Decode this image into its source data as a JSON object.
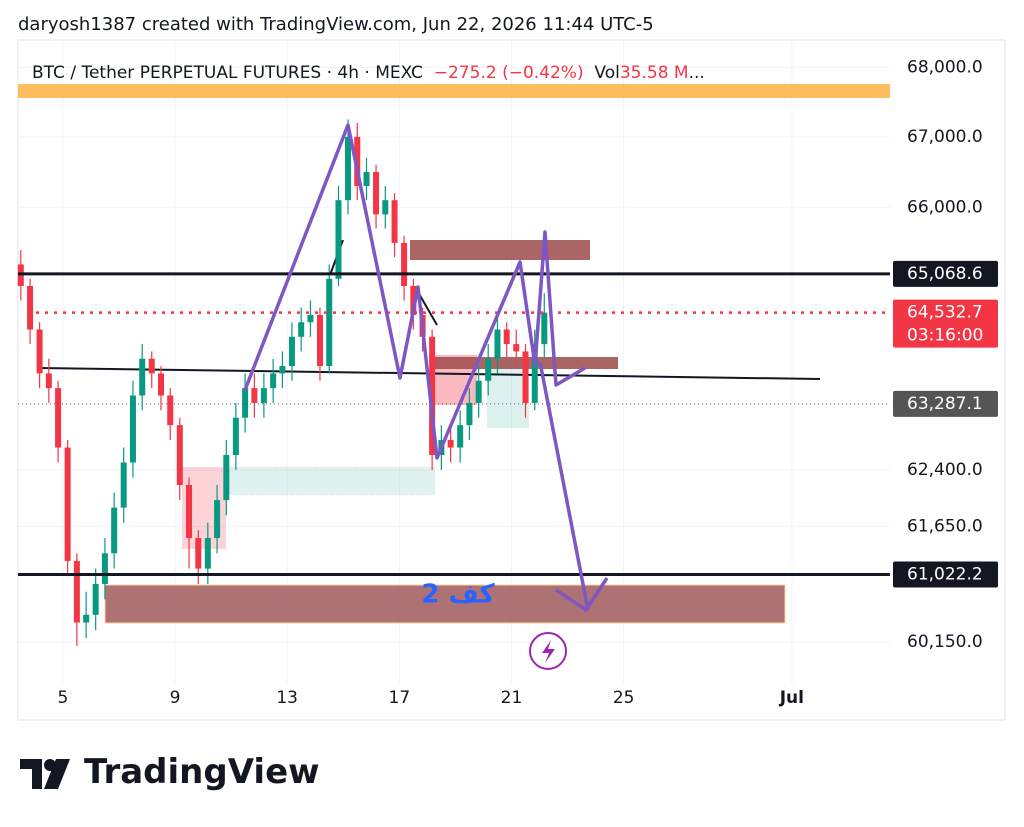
{
  "header": "daryosh1387 created with TradingView.com, Jun 22, 2026 11:44 UTC-5",
  "footer": "TradingView",
  "chart_data": {
    "type": "candlestick",
    "title": "BTC / Tether PERPETUAL FUTURES · 4h · MEXC",
    "change": "−275.2 (−0.42%)",
    "volume_label": "Vol",
    "volume": "35.58 M",
    "more": "...",
    "annotation": "کف 2",
    "log_scale": true,
    "grid": true,
    "up_color": "#089981",
    "down_color": "#f23645",
    "xlim": [
      3.4,
      34.5
    ],
    "xticks": [
      5,
      9,
      13,
      17,
      21,
      25,
      {
        "value": 31,
        "label": "Jul"
      }
    ],
    "ylim": [
      59600,
      68400
    ],
    "yticks": [
      {
        "value": 60150,
        "label": "60,150.0"
      },
      {
        "value": 61650,
        "label": "61,650.0"
      },
      {
        "value": 62400,
        "label": "62,400.0"
      },
      {
        "value": 66000,
        "label": "66,000.0"
      },
      {
        "value": 67000,
        "label": "67,000.0"
      },
      {
        "value": 68000,
        "label": "68,000.0"
      }
    ],
    "price_lines": [
      {
        "value": 65068.6,
        "label": "65,068.6",
        "color": "#131722"
      },
      {
        "value": 64532.7,
        "label": "64,532.7",
        "color": "#f23645",
        "countdown": "03:16:00"
      },
      {
        "value": 63287.1,
        "label": "63,287.1",
        "color": "#555555"
      },
      {
        "value": 61022.2,
        "label": "61,022.2",
        "color": "#131722"
      }
    ],
    "x": [
      3.5,
      3.83,
      4.17,
      4.5,
      4.83,
      5.17,
      5.5,
      5.83,
      6.17,
      6.5,
      6.83,
      7.17,
      7.5,
      7.83,
      8.17,
      8.5,
      8.83,
      9.17,
      9.5,
      9.83,
      10.17,
      10.5,
      10.83,
      11.17,
      11.5,
      11.83,
      12.17,
      12.5,
      12.83,
      13.17,
      13.5,
      13.83,
      14.17,
      14.5,
      14.83,
      15.17,
      15.5,
      15.83,
      16.17,
      16.5,
      16.83,
      17.17,
      17.5,
      17.83,
      18.17,
      18.5,
      18.83,
      19.17,
      19.5,
      19.83,
      20.17,
      20.5,
      20.83,
      21.17,
      21.5,
      21.83,
      22.17
    ],
    "open": [
      65200,
      64900,
      64300,
      63700,
      63500,
      62700,
      61200,
      60400,
      60500,
      60900,
      61300,
      61900,
      62500,
      63400,
      63900,
      63700,
      63400,
      63000,
      62200,
      61500,
      61100,
      61500,
      62000,
      62600,
      63100,
      63500,
      63300,
      63500,
      63700,
      63800,
      64200,
      64400,
      64500,
      63800,
      65000,
      66100,
      67000,
      66300,
      66500,
      65900,
      66100,
      65500,
      64900,
      64500,
      64200,
      62600,
      62800,
      62700,
      63000,
      63300,
      63600,
      63900,
      64300,
      64100,
      64000,
      63300,
      64100
    ],
    "high": [
      65400,
      65000,
      64400,
      63900,
      63600,
      62800,
      61300,
      60800,
      61100,
      61500,
      62100,
      62700,
      63600,
      64100,
      64000,
      63800,
      63500,
      63100,
      62300,
      61600,
      61700,
      62200,
      62800,
      63300,
      63700,
      63700,
      63700,
      63900,
      64000,
      64400,
      64600,
      64700,
      64600,
      65200,
      66300,
      67250,
      67200,
      66700,
      66600,
      66300,
      66200,
      65600,
      65000,
      64600,
      64300,
      63000,
      63000,
      63200,
      63500,
      63800,
      64100,
      64500,
      64400,
      64300,
      64100,
      64300,
      64800
    ],
    "low": [
      64700,
      64100,
      63500,
      63300,
      62500,
      61000,
      60100,
      60200,
      60300,
      60700,
      61100,
      61700,
      62300,
      63200,
      63500,
      63200,
      62800,
      62000,
      61100,
      60900,
      60900,
      61300,
      61800,
      62400,
      62900,
      63100,
      63100,
      63300,
      63500,
      63600,
      64000,
      64200,
      63600,
      63700,
      64900,
      65900,
      66100,
      66100,
      65700,
      65700,
      65300,
      64700,
      64300,
      64000,
      62400,
      62400,
      62500,
      62500,
      62800,
      63100,
      63400,
      63700,
      63900,
      63800,
      63100,
      63200,
      63900
    ],
    "close": [
      64900,
      64300,
      63700,
      63500,
      62700,
      61200,
      60400,
      60500,
      60900,
      61300,
      61900,
      62500,
      63400,
      63900,
      63700,
      63400,
      63000,
      62200,
      61500,
      61100,
      61500,
      62000,
      62600,
      63100,
      63500,
      63300,
      63500,
      63700,
      63800,
      64200,
      64400,
      64500,
      63800,
      65000,
      66100,
      67000,
      66300,
      66500,
      65900,
      66100,
      65500,
      64900,
      64500,
      64200,
      62600,
      62800,
      62700,
      63000,
      63300,
      63600,
      63900,
      64300,
      64100,
      64000,
      63300,
      64100,
      64532.7
    ]
  }
}
